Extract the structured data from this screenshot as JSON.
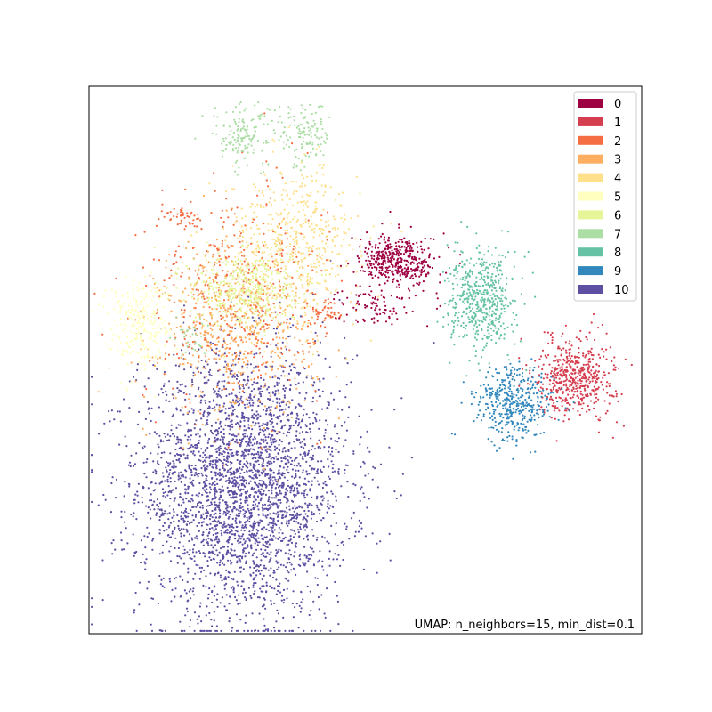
{
  "chart_data": {
    "type": "scatter",
    "title": "",
    "xlabel": "",
    "ylabel": "",
    "xlim": [
      0,
      100
    ],
    "ylim": [
      0,
      100
    ],
    "grid": false,
    "show_ticks": false,
    "legend_placement": "top-right",
    "annotation": "UMAP: n_neighbors=15, min_dist=0.1",
    "colors": [
      "#9e0142",
      "#d53e4f",
      "#f46d43",
      "#fdae61",
      "#fee08b",
      "#ffffbf",
      "#e6f598",
      "#abdda4",
      "#66c2a5",
      "#3288bd",
      "#5e4fa2"
    ],
    "series": [
      {
        "name": "0",
        "color": "#9e0142",
        "clusters": [
          {
            "cx": 56,
            "cy": 68,
            "sx": 3.5,
            "sy": 2.4,
            "n": 420
          },
          {
            "cx": 52,
            "cy": 60,
            "sx": 3.5,
            "sy": 1.8,
            "n": 90
          }
        ]
      },
      {
        "name": "1",
        "color": "#d53e4f",
        "clusters": [
          {
            "cx": 88,
            "cy": 47,
            "sx": 3.6,
            "sy": 3.6,
            "n": 520
          }
        ]
      },
      {
        "name": "2",
        "color": "#f46d43",
        "clusters": [
          {
            "cx": 26,
            "cy": 62,
            "sx": 8,
            "sy": 10,
            "n": 380
          },
          {
            "cx": 17,
            "cy": 76,
            "sx": 1.5,
            "sy": 1.2,
            "n": 40
          },
          {
            "cx": 43,
            "cy": 59,
            "sx": 1.4,
            "sy": 1.4,
            "n": 50
          }
        ]
      },
      {
        "name": "3",
        "color": "#fdae61",
        "clusters": [
          {
            "cx": 27,
            "cy": 56,
            "sx": 7,
            "sy": 8,
            "n": 620
          }
        ]
      },
      {
        "name": "4",
        "color": "#fee08b",
        "clusters": [
          {
            "cx": 37,
            "cy": 71,
            "sx": 6,
            "sy": 7,
            "n": 560
          }
        ]
      },
      {
        "name": "5",
        "color": "#ffffbf",
        "clusters": [
          {
            "cx": 9,
            "cy": 57,
            "sx": 3,
            "sy": 4,
            "n": 300
          }
        ]
      },
      {
        "name": "6",
        "color": "#e6f598",
        "clusters": [
          {
            "cx": 28,
            "cy": 63,
            "sx": 5,
            "sy": 3.5,
            "n": 430
          }
        ]
      },
      {
        "name": "7",
        "color": "#abdda4",
        "clusters": [
          {
            "cx": 28,
            "cy": 91,
            "sx": 3,
            "sy": 3,
            "n": 150
          },
          {
            "cx": 39,
            "cy": 91,
            "sx": 2.2,
            "sy": 3,
            "n": 120
          },
          {
            "cx": 18,
            "cy": 54,
            "sx": 1.5,
            "sy": 1.5,
            "n": 30
          }
        ]
      },
      {
        "name": "8",
        "color": "#66c2a5",
        "clusters": [
          {
            "cx": 71,
            "cy": 61,
            "sx": 3,
            "sy": 4.5,
            "n": 520
          }
        ]
      },
      {
        "name": "9",
        "color": "#3288bd",
        "clusters": [
          {
            "cx": 77,
            "cy": 42,
            "sx": 3.5,
            "sy": 3.5,
            "n": 420
          }
        ]
      },
      {
        "name": "10",
        "color": "#5e4fa2",
        "clusters": [
          {
            "cx": 28,
            "cy": 27,
            "sx": 9.5,
            "sy": 12,
            "n": 3200
          }
        ]
      }
    ]
  }
}
